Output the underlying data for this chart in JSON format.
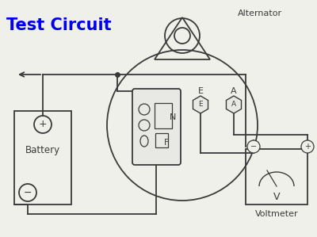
{
  "title": "Test Circuit",
  "title_color": "#0000EE",
  "title_fontsize": 15,
  "title_bold": true,
  "label_alternator": "Alternator",
  "label_battery": "Battery",
  "label_voltmeter": "Voltmeter",
  "label_E": "E",
  "label_A": "A",
  "label_N": "N",
  "label_F": "F",
  "label_V": "V",
  "label_plus": "+",
  "label_minus": "−",
  "bg_color": "#f0f0eb",
  "line_color": "#3a3a3a",
  "line_width": 1.3
}
